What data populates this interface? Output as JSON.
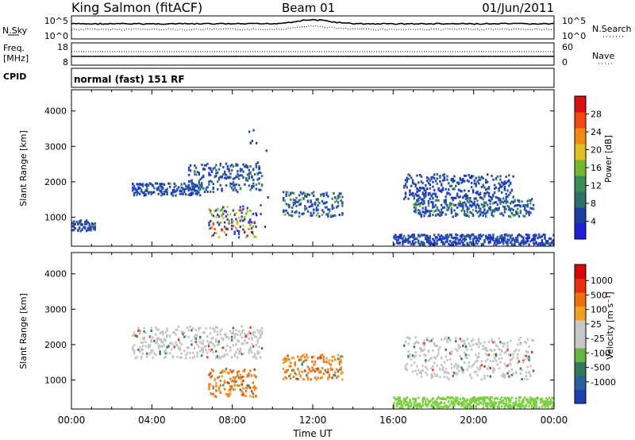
{
  "header": {
    "station": "King Salmon (fitACF)",
    "beam": "Beam 01",
    "date": "01/Jun/2011"
  },
  "top_panels": {
    "noise": {
      "left_label": "N.Sky",
      "right_label": "N.Search",
      "left_ticks": [
        "10^5",
        "10^0"
      ],
      "right_ticks": [
        "10^5",
        "10^0"
      ]
    },
    "freq": {
      "left_label_line1": "Freq.",
      "left_label_line2": "[MHz]",
      "right_label": "Nave",
      "left_ticks": [
        "18",
        "8"
      ],
      "right_ticks": [
        "60",
        "0"
      ]
    },
    "cpid": {
      "label": "CPID",
      "text": "normal (fast) 151 RF"
    }
  },
  "colors": {
    "power_scale": [
      "#1f1fd8",
      "#1c3fa4",
      "#2f6f6a",
      "#3a8c5a",
      "#73b830",
      "#e0c020",
      "#f08a10",
      "#f04a10",
      "#d81010"
    ],
    "velocity_scale": [
      "#1f3fb0",
      "#2a5fa0",
      "#2f7a5a",
      "#66b840",
      "#c8c8c8",
      "#c8c8c8",
      "#f0a020",
      "#f07010",
      "#e83010",
      "#d80808"
    ],
    "power_main": "#2646c0",
    "velocity_ground": "#7bd040",
    "velocity_ionos": "#c4c4c4",
    "velocity_orange": "#f07818"
  },
  "chart_data": [
    {
      "type": "heatmap",
      "parameter": "Power",
      "xlabel": "",
      "ylabel": "Slant Range [km]",
      "x_ticks": [
        "00:00",
        "04:00",
        "08:00",
        "12:00",
        "16:00",
        "20:00",
        "00:00"
      ],
      "x_range_hours": [
        0,
        24
      ],
      "y_ticks": [
        "1000",
        "2000",
        "3000",
        "4000"
      ],
      "y_range_km": [
        180,
        4600
      ],
      "colorbar": {
        "label": "Power [dB]",
        "ticks": [
          "4",
          "8",
          "12",
          "16",
          "20",
          "24",
          "28"
        ],
        "range": [
          0,
          32
        ]
      },
      "echo_regions": [
        {
          "name": "ground-scatter-early",
          "t_start": 0.0,
          "t_end": 1.2,
          "r_start": 600,
          "r_end": 900,
          "level": 6
        },
        {
          "name": "band-1800-morning",
          "t_start": 3.0,
          "t_end": 6.5,
          "r_start": 1600,
          "r_end": 1950,
          "level": 6
        },
        {
          "name": "band-1800-to-2400",
          "t_start": 5.8,
          "t_end": 9.5,
          "r_start": 1700,
          "r_end": 2500,
          "level": 9
        },
        {
          "name": "morning-strong",
          "t_start": 6.8,
          "t_end": 9.2,
          "r_start": 400,
          "r_end": 1300,
          "level": 18
        },
        {
          "name": "midday-band",
          "t_start": 10.5,
          "t_end": 13.5,
          "r_start": 1000,
          "r_end": 1700,
          "level": 12
        },
        {
          "name": "range-spikes",
          "t_start": 8.8,
          "t_end": 9.8,
          "r_start": 500,
          "r_end": 3500,
          "level": 5
        },
        {
          "name": "evening-upper",
          "t_start": 16.5,
          "t_end": 22.0,
          "r_start": 1500,
          "r_end": 2200,
          "level": 6
        },
        {
          "name": "evening-middle",
          "t_start": 17.0,
          "t_end": 23.0,
          "r_start": 1000,
          "r_end": 1500,
          "level": 10
        },
        {
          "name": "evening-ground",
          "t_start": 16.0,
          "t_end": 24.0,
          "r_start": 200,
          "r_end": 500,
          "level": 5
        }
      ]
    },
    {
      "type": "heatmap",
      "parameter": "Velocity",
      "xlabel": "Time UT",
      "ylabel": "Slant Range [km]",
      "x_ticks": [
        "00:00",
        "04:00",
        "08:00",
        "12:00",
        "16:00",
        "20:00",
        "00:00"
      ],
      "x_range_hours": [
        0,
        24
      ],
      "y_ticks": [
        "1000",
        "2000",
        "3000",
        "4000"
      ],
      "y_range_km": [
        180,
        4600
      ],
      "colorbar": {
        "label": "Velocity [m s⁻¹]",
        "ticks": [
          "1000",
          "500",
          "100",
          "25",
          "-25",
          "-100",
          "-500",
          "-1000"
        ]
      },
      "echo_regions": [
        {
          "name": "band-1800",
          "t_start": 3.0,
          "t_end": 9.5,
          "r_start": 1600,
          "r_end": 2500,
          "velocity": "near-zero"
        },
        {
          "name": "morning-negative",
          "t_start": 6.8,
          "t_end": 9.2,
          "r_start": 500,
          "r_end": 1300,
          "velocity": "negative"
        },
        {
          "name": "midday-orange",
          "t_start": 10.5,
          "t_end": 13.5,
          "r_start": 1000,
          "r_end": 1700,
          "velocity": "negative"
        },
        {
          "name": "evening-grey",
          "t_start": 16.5,
          "t_end": 23.0,
          "r_start": 1000,
          "r_end": 2200,
          "velocity": "near-zero"
        },
        {
          "name": "evening-ground-green",
          "t_start": 16.0,
          "t_end": 24.0,
          "r_start": 200,
          "r_end": 500,
          "velocity": "positive-small"
        }
      ]
    }
  ]
}
